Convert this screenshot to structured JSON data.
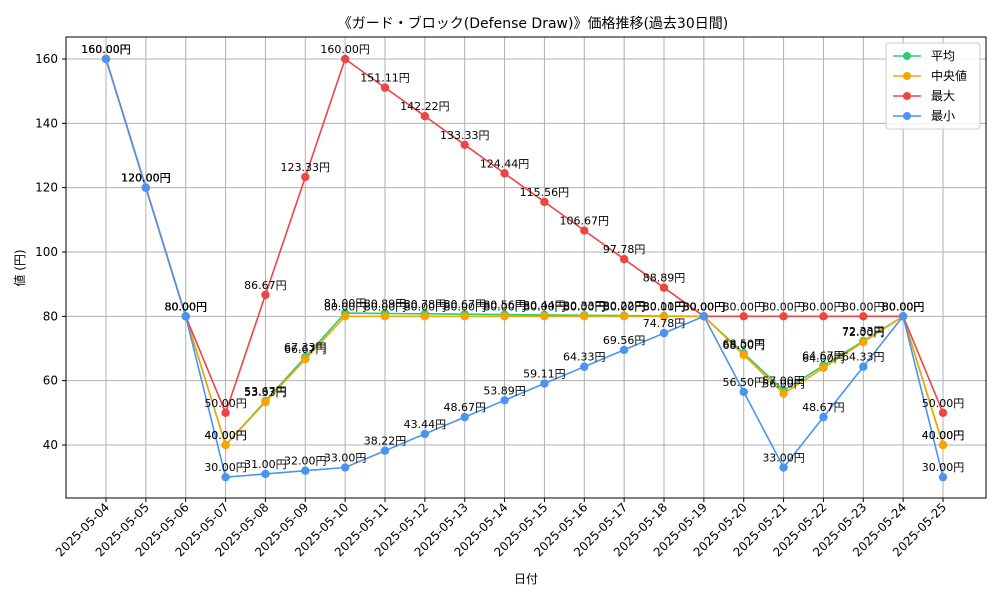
{
  "chart_data": {
    "type": "line",
    "title": "《ガード・ブロック(Defense Draw)》価格推移(過去30日間)",
    "xlabel": "日付",
    "ylabel": "値 (円)",
    "ylim": [
      23,
      166
    ],
    "yticks": [
      40,
      60,
      80,
      100,
      120,
      140,
      160
    ],
    "grid": true,
    "legend_position": "top-right",
    "value_suffix": "円",
    "categories": [
      "2025-05-04",
      "2025-05-05",
      "2025-05-06",
      "2025-05-07",
      "2025-05-08",
      "2025-05-09",
      "2025-05-10",
      "2025-05-11",
      "2025-05-12",
      "2025-05-13",
      "2025-05-14",
      "2025-05-15",
      "2025-05-16",
      "2025-05-17",
      "2025-05-18",
      "2025-05-19",
      "2025-05-20",
      "2025-05-21",
      "2025-05-22",
      "2025-05-23",
      "2025-05-24",
      "2025-05-25"
    ],
    "series": [
      {
        "name": "平均",
        "color": "#2ecc71",
        "values": [
          160.0,
          120.0,
          80.0,
          40.0,
          53.67,
          67.33,
          81.0,
          80.89,
          80.78,
          80.67,
          80.56,
          80.44,
          80.33,
          80.22,
          80.11,
          80.0,
          68.5,
          57.0,
          64.67,
          72.33,
          80.0,
          40.0
        ]
      },
      {
        "name": "中央値",
        "color": "#f5a400",
        "values": [
          160.0,
          120.0,
          80.0,
          40.0,
          53.33,
          66.67,
          80.0,
          80.0,
          80.0,
          80.0,
          80.0,
          80.0,
          80.0,
          80.0,
          80.0,
          80.0,
          68.0,
          56.0,
          64.0,
          72.0,
          80.0,
          40.0
        ]
      },
      {
        "name": "最大",
        "color": "#ef4444",
        "values": [
          160.0,
          120.0,
          80.0,
          50.0,
          86.67,
          123.33,
          160.0,
          151.11,
          142.22,
          133.33,
          124.44,
          115.56,
          106.67,
          97.78,
          88.89,
          80.0,
          80.0,
          80.0,
          80.0,
          80.0,
          80.0,
          50.0
        ]
      },
      {
        "name": "最小",
        "color": "#4a94f0",
        "values": [
          160.0,
          120.0,
          80.0,
          30.0,
          31.0,
          32.0,
          33.0,
          38.22,
          43.44,
          48.67,
          53.89,
          59.11,
          64.33,
          69.56,
          74.78,
          80.0,
          56.5,
          33.0,
          48.67,
          64.33,
          80.0,
          30.0
        ]
      }
    ]
  }
}
